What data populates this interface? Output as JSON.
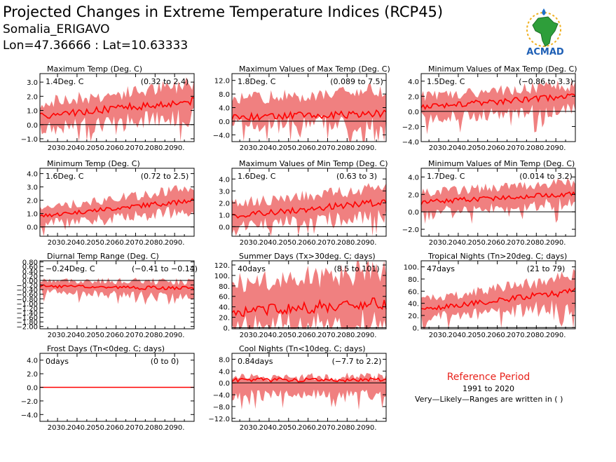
{
  "header": {
    "title": "Projected Changes in Extreme Temperature Indices (RCP45)",
    "location": "Somalia_ERIGAVO",
    "coords": "Lon=47.36666 : Lat=10.63333"
  },
  "logo": {
    "text": "ACMAD"
  },
  "reference": {
    "title": "Reference Period",
    "period": "1991 to 2020",
    "note": "Very—Likely—Ranges are written in ( )"
  },
  "colors": {
    "band": "#f08080",
    "line": "#ff0000",
    "zero": "#000000",
    "ref_title": "#e8231c"
  },
  "chart_data": [
    {
      "type": "area",
      "title": "Maximum Temp (Deg. C)",
      "summary": "1.4Deg. C",
      "range": "(0.32 to 2.4)",
      "x": [
        2021,
        2100
      ],
      "xticks": [
        2030,
        2040,
        2050,
        2060,
        2070,
        2080,
        2090
      ],
      "xtick_labels": [
        "2030.",
        "2040.",
        "2050.",
        "2060.",
        "2070.",
        "2080.",
        "2090."
      ],
      "ylim": [
        -1.2,
        3.6
      ],
      "yticks": [
        -1.0,
        0.0,
        1.0,
        2.0,
        3.0
      ],
      "ytick_labels": [
        "−1.0",
        "0.0",
        "1.0",
        "2.0",
        "3.0"
      ],
      "median": {
        "start": 0.6,
        "end": 1.7
      },
      "lower": {
        "start": -0.3,
        "end": 0.6
      },
      "upper": {
        "start": 1.5,
        "end": 2.9
      }
    },
    {
      "type": "area",
      "title": "Maximum Values of Max Temp (Deg. C)",
      "summary": "1.8Deg. C",
      "range": "(0.089 to 7.5)",
      "x": [
        2021,
        2100
      ],
      "xticks": [
        2030,
        2040,
        2050,
        2060,
        2070,
        2080,
        2090
      ],
      "xtick_labels": [
        "2030.",
        "2040.",
        "2050.",
        "2060.",
        "2070.",
        "2080.",
        "2090."
      ],
      "ylim": [
        -6,
        14
      ],
      "yticks": [
        -4.0,
        0.0,
        4.0,
        8.0,
        12.0
      ],
      "ytick_labels": [
        "−4.0",
        "0.0",
        "4.0",
        "8.0",
        "12.0"
      ],
      "median": {
        "start": 1.2,
        "end": 2.3
      },
      "lower": {
        "start": -1.0,
        "end": -0.5
      },
      "upper": {
        "start": 6.5,
        "end": 9.0
      }
    },
    {
      "type": "area",
      "title": "Minimum Values of Max Temp (Deg. C)",
      "summary": "1.5Deg. C",
      "range": "(−0.86 to 3.3)",
      "x": [
        2021,
        2100
      ],
      "xticks": [
        2030,
        2040,
        2050,
        2060,
        2070,
        2080,
        2090
      ],
      "xtick_labels": [
        "2030.",
        "2040.",
        "2050.",
        "2060.",
        "2070.",
        "2080.",
        "2090."
      ],
      "ylim": [
        -4,
        5
      ],
      "yticks": [
        -4.0,
        -2.0,
        0.0,
        2.0,
        4.0
      ],
      "ytick_labels": [
        "−4.0",
        "−2.0",
        "0.0",
        "2.0",
        "4.0"
      ],
      "median": {
        "start": 0.6,
        "end": 2.0
      },
      "lower": {
        "start": -0.8,
        "end": 0.2
      },
      "upper": {
        "start": 2.0,
        "end": 3.5
      }
    },
    {
      "type": "area",
      "title": "Minimum Temp (Deg. C)",
      "summary": "1.6Deg. C",
      "range": "(0.72 to 2.5)",
      "x": [
        2021,
        2100
      ],
      "xticks": [
        2030,
        2040,
        2050,
        2060,
        2070,
        2080,
        2090
      ],
      "xtick_labels": [
        "2030.",
        "2040.",
        "2050.",
        "2060.",
        "2070.",
        "2080.",
        "2090."
      ],
      "ylim": [
        -0.7,
        4.4
      ],
      "yticks": [
        0.0,
        1.0,
        2.0,
        3.0,
        4.0
      ],
      "ytick_labels": [
        "0.0",
        "1.0",
        "2.0",
        "3.0",
        "4.0"
      ],
      "median": {
        "start": 0.8,
        "end": 2.0
      },
      "lower": {
        "start": 0.2,
        "end": 1.2
      },
      "upper": {
        "start": 1.4,
        "end": 2.9
      }
    },
    {
      "type": "area",
      "title": "Maximum Values of Min Temp (Deg. C)",
      "summary": "1.6Deg. C",
      "range": "(0.63 to 3)",
      "x": [
        2021,
        2100
      ],
      "xticks": [
        2030,
        2040,
        2050,
        2060,
        2070,
        2080,
        2090
      ],
      "xtick_labels": [
        "2030.",
        "2040.",
        "2050.",
        "2060.",
        "2070.",
        "2080.",
        "2090."
      ],
      "ylim": [
        -0.8,
        4.9
      ],
      "yticks": [
        0.0,
        1.0,
        2.0,
        3.0,
        4.0
      ],
      "ytick_labels": [
        "0.0",
        "1.0",
        "2.0",
        "3.0",
        "4.0"
      ],
      "median": {
        "start": 0.9,
        "end": 2.1
      },
      "lower": {
        "start": 0.0,
        "end": 1.0
      },
      "upper": {
        "start": 1.9,
        "end": 3.3
      }
    },
    {
      "type": "area",
      "title": "Minimum Values of Min Temp (Deg. C)",
      "summary": "1.7Deg. C",
      "range": "(0.014 to 3.2)",
      "x": [
        2021,
        2100
      ],
      "xticks": [
        2030,
        2040,
        2050,
        2060,
        2070,
        2080,
        2090
      ],
      "xtick_labels": [
        "2030.",
        "2040.",
        "2050.",
        "2060.",
        "2070.",
        "2080.",
        "2090."
      ],
      "ylim": [
        -2.8,
        5.0
      ],
      "yticks": [
        -2.0,
        0.0,
        2.0,
        4.0
      ],
      "ytick_labels": [
        "−2.0",
        "0.0",
        "2.0",
        "4.0"
      ],
      "median": {
        "start": 1.1,
        "end": 2.1
      },
      "lower": {
        "start": 0.0,
        "end": 1.0
      },
      "upper": {
        "start": 2.2,
        "end": 3.4
      }
    },
    {
      "type": "area",
      "title": "Diurnal Temp Range (Deg. C)",
      "summary": "−0.24Deg. C",
      "range": "(−0.41 to −0.14)",
      "x": [
        2021,
        2100
      ],
      "xticks": [
        2030,
        2040,
        2050,
        2060,
        2070,
        2080,
        2090
      ],
      "xtick_labels": [
        "2030.",
        "2040.",
        "2050.",
        "2060.",
        "2070.",
        "2080.",
        "2090."
      ],
      "ylim": [
        -2.1,
        0.85
      ],
      "yticks": [
        -2.0,
        -1.6,
        -1.2,
        -0.8,
        -0.4,
        0.0,
        0.4,
        0.8
      ],
      "ytick_labels": [
        "−2.00",
        "−1.60",
        "−1.20",
        "−0.80",
        "−0.40",
        "0.00",
        "0.40",
        "0.80"
      ],
      "extra_yticks": [
        -1.8,
        -1.4,
        -1.0,
        -0.6,
        -0.2,
        0.2,
        0.6
      ],
      "extra_ytick_labels": [
        "−1.80",
        "−1.40",
        "−1.00",
        "−0.60",
        "−0.20",
        "0.20",
        "0.60"
      ],
      "median": {
        "start": -0.25,
        "end": -0.35
      },
      "lower": {
        "start": -0.5,
        "end": -0.7
      },
      "upper": {
        "start": 0.0,
        "end": -0.05
      }
    },
    {
      "type": "area",
      "title": "Summer Days (Tx>30deg. C; days)",
      "summary": "40days",
      "range": "(8.5 to 101)",
      "x": [
        2021,
        2100
      ],
      "xticks": [
        2030,
        2040,
        2050,
        2060,
        2070,
        2080,
        2090
      ],
      "xtick_labels": [
        "2030.",
        "2040.",
        "2050.",
        "2060.",
        "2070.",
        "2080.",
        "2090."
      ],
      "ylim": [
        -2,
        128
      ],
      "yticks": [
        0,
        20,
        40,
        60,
        80,
        100,
        120
      ],
      "ytick_labels": [
        "0.",
        "20.",
        "40.",
        "60.",
        "80.",
        "100.",
        "120."
      ],
      "median": {
        "start": 30,
        "end": 48
      },
      "lower": {
        "start": 8,
        "end": 5
      },
      "upper": {
        "start": 85,
        "end": 110
      }
    },
    {
      "type": "area",
      "title": "Tropical Nights (Tn>20deg. C; days)",
      "summary": "47days",
      "range": "(21 to 79)",
      "x": [
        2021,
        2100
      ],
      "xticks": [
        2030,
        2040,
        2050,
        2060,
        2070,
        2080,
        2090
      ],
      "xtick_labels": [
        "2030.",
        "2040.",
        "2050.",
        "2060.",
        "2070.",
        "2080.",
        "2090."
      ],
      "ylim": [
        -2,
        110
      ],
      "yticks": [
        0,
        20,
        40,
        60,
        80,
        100
      ],
      "ytick_labels": [
        "0.",
        "20.",
        "40.",
        "60.",
        "80.",
        "100."
      ],
      "median": {
        "start": 30,
        "end": 60
      },
      "lower": {
        "start": 15,
        "end": 35
      },
      "upper": {
        "start": 45,
        "end": 85
      }
    },
    {
      "type": "area",
      "title": "Frost Days (Tn<0deg. C; days)",
      "summary": "0days",
      "range": "(0 to 0)",
      "x": [
        2021,
        2100
      ],
      "xticks": [
        2030,
        2040,
        2050,
        2060,
        2070,
        2080,
        2090
      ],
      "xtick_labels": [
        "2030.",
        "2040.",
        "2050.",
        "2060.",
        "2070.",
        "2080.",
        "2090."
      ],
      "ylim": [
        -5,
        5
      ],
      "yticks": [
        -4.0,
        -2.0,
        0.0,
        2.0,
        4.0
      ],
      "ytick_labels": [
        "−4.0",
        "−2.0",
        "0.0",
        "2.0",
        "4.0"
      ],
      "median": {
        "start": 0,
        "end": 0
      },
      "lower": {
        "start": 0,
        "end": 0
      },
      "upper": {
        "start": 0,
        "end": 0
      }
    },
    {
      "type": "area",
      "title": "Cool Nights (Tn<10deg. C; days)",
      "summary": "0.84days",
      "range": "(−7.7 to 2.2)",
      "x": [
        2021,
        2100
      ],
      "xticks": [
        2030,
        2040,
        2050,
        2060,
        2070,
        2080,
        2090
      ],
      "xtick_labels": [
        "2030.",
        "2040.",
        "2050.",
        "2060.",
        "2070.",
        "2080.",
        "2090."
      ],
      "ylim": [
        -13,
        10
      ],
      "yticks": [
        -12.0,
        -8.0,
        -4.0,
        0.0,
        4.0,
        8.0
      ],
      "ytick_labels": [
        "−12.0",
        "−8.0",
        "−4.0",
        "0.0",
        "4.0",
        "8.0"
      ],
      "median": {
        "start": 1.0,
        "end": 1.0
      },
      "lower": {
        "start": -4,
        "end": -4
      },
      "upper": {
        "start": 2.0,
        "end": 2.0
      }
    }
  ]
}
